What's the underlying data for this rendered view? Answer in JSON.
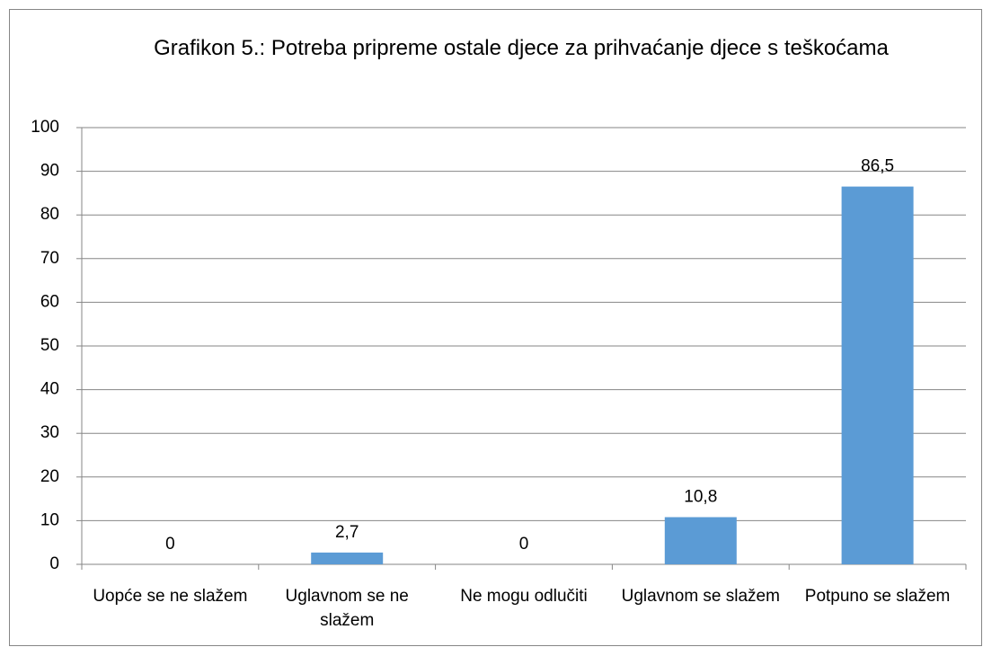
{
  "chart_data": {
    "type": "bar",
    "title": "Grafikon 5.: Potreba pripreme ostale djece za prihvaćanje djece s teškoćama",
    "categories": [
      "Uopće se ne slažem",
      "Uglavnom se ne slažem",
      "Ne mogu odlučiti",
      "Uglavnom se slažem",
      "Potpuno se slažem"
    ],
    "values": [
      0,
      2.7,
      0,
      10.8,
      86.5
    ],
    "value_labels": [
      "0",
      "2,7",
      "0",
      "10,8",
      "86,5"
    ],
    "color": "#5b9bd5",
    "ylim": [
      0,
      100
    ],
    "yticks": [
      0,
      10,
      20,
      30,
      40,
      50,
      60,
      70,
      80,
      90,
      100
    ],
    "grid": true
  }
}
